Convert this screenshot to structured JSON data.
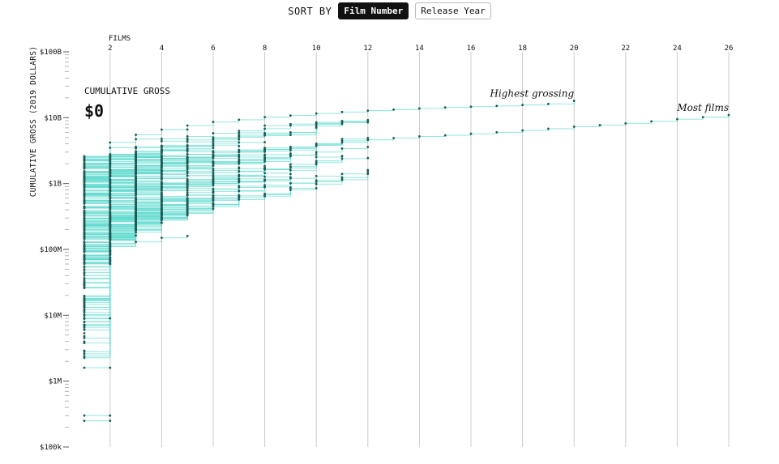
{
  "sort": {
    "label": "SORT BY",
    "options": [
      "Film Number",
      "Release Year"
    ],
    "active": "Film Number"
  },
  "readout": {
    "label": "CUMULATIVE GROSS",
    "value": "$0"
  },
  "colors": {
    "line": "#5fd9cf",
    "dot": "#1d5c57",
    "grid": "#cccccc"
  },
  "chart_data": {
    "type": "line",
    "xlabel": "FILMS",
    "ylabel": "CUMULATIVE GROSS (2019 DOLLARS)",
    "x_ticks": [
      2,
      4,
      6,
      8,
      10,
      12,
      14,
      16,
      18,
      20,
      22,
      24,
      26
    ],
    "xlim": [
      1,
      26
    ],
    "y_scale": "log",
    "ylim": [
      100000,
      100000000000
    ],
    "y_ticks": [
      {
        "value": 100000,
        "label": "$100k"
      },
      {
        "value": 1000000,
        "label": "$1M"
      },
      {
        "value": 10000000,
        "label": "$10M"
      },
      {
        "value": 100000000,
        "label": "$100M"
      },
      {
        "value": 1000000000,
        "label": "$1B"
      },
      {
        "value": 10000000000,
        "label": "$10B"
      },
      {
        "value": 100000000000,
        "label": "$100B"
      }
    ],
    "annotations": [
      {
        "text": "Highest grossing",
        "x": 20,
        "y": 18000000000
      },
      {
        "text": "Most films",
        "x": 26,
        "y": 11000000000
      }
    ],
    "highlighted_series": [
      {
        "values": [
          2600000000.0,
          4200000000.0,
          5500000000.0,
          6600000000.0,
          7600000000.0,
          8600000000.0,
          9300000000.0,
          10200000000.0,
          10800000000.0,
          11600000000.0,
          12200000000.0,
          12800000000.0,
          13300000000.0,
          13800000000.0,
          14300000000.0,
          14700000000.0,
          15100000000.0,
          15600000000.0,
          16200000000.0,
          18000000000.0
        ]
      },
      {
        "values": [
          900000000.0,
          1500000000.0,
          1900000000.0,
          2200000000.0,
          2500000000.0,
          2700000000.0,
          3000000000.0,
          3300000000.0,
          3600000000.0,
          3900000000.0,
          4200000000.0,
          4600000000.0,
          4900000000.0,
          5200000000.0,
          5400000000.0,
          5700000000.0,
          6000000000.0,
          6400000000.0,
          6800000000.0,
          7300000000.0,
          7700000000.0,
          8200000000.0,
          8800000000.0,
          9500000000.0,
          10200000000.0,
          11000000000.0
        ]
      },
      {
        "values": [
          1500000000.0,
          2600000000.0,
          3600000000.0,
          4400000000.0,
          5200000000.0,
          5800000000.0,
          6300000000.0,
          7600000000.0,
          8000000000.0,
          8500000000.0,
          8900000000.0,
          9200000000.0
        ]
      },
      {
        "values": [
          1200000000.0,
          2000000000.0,
          2800000000.0,
          3600000000.0,
          4300000000.0,
          5000000000.0,
          5900000000.0,
          6800000000.0,
          7600000000.0,
          8200000000.0,
          8600000000.0,
          9000000000.0
        ]
      },
      {
        "values": [
          700000000.0,
          1100000000.0,
          1400000000.0,
          1600000000.0,
          1800000000.0,
          2000000000.0,
          2200000000.0,
          2500000000.0,
          2700000000.0,
          3000000000.0,
          3400000000.0,
          3600000000.0
        ]
      },
      {
        "values": [
          300000000.0,
          550000000.0,
          700000000.0,
          800000000.0,
          900000000.0,
          1000000000.0,
          1050000000.0,
          1100000000.0,
          1200000000.0,
          1300000000.0,
          1400000000.0,
          1600000000.0
        ]
      },
      {
        "values": [
          250000000.0,
          400000000.0,
          500000000.0,
          550000000.0,
          600000000.0,
          620000000.0,
          650000000.0,
          700000000.0,
          800000000.0,
          850000000.0
        ]
      },
      {
        "values": [
          40000000.0,
          120000000.0,
          130000000.0,
          150000000.0,
          160000000.0
        ]
      },
      {
        "values": [
          300000.0,
          300000.0
        ]
      },
      {
        "values": [
          250000.0,
          250000.0
        ]
      },
      {
        "values": [
          1600000.0,
          1600000.0
        ]
      },
      {
        "values": [
          8000000.0,
          9000000.0
        ]
      }
    ],
    "random_bulk": {
      "counts_per_film": [
        240,
        220,
        170,
        120,
        85,
        60,
        42,
        30,
        20,
        14,
        10,
        6
      ]
    }
  }
}
